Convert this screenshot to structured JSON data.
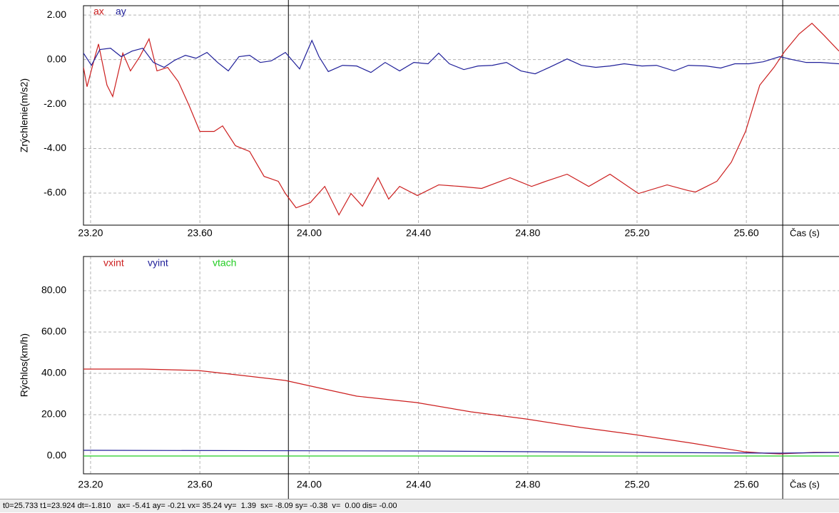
{
  "chart_data": [
    {
      "type": "line",
      "ylabel": "Zrýchlenie(m/s2)",
      "xlabel": "Čas (s)",
      "xlim": [
        23.174,
        25.939
      ],
      "ylim": [
        -7.44,
        2.42
      ],
      "xticks": [
        {
          "value": 23.2,
          "label": "23.20"
        },
        {
          "value": 23.6,
          "label": "23.60"
        },
        {
          "value": 24.0,
          "label": "24.00"
        },
        {
          "value": 24.4,
          "label": "24.40"
        },
        {
          "value": 24.8,
          "label": "24.80"
        },
        {
          "value": 25.2,
          "label": "25.20"
        },
        {
          "value": 25.6,
          "label": "25.60"
        }
      ],
      "yticks": [
        {
          "value": 2,
          "label": "2.00"
        },
        {
          "value": 0,
          "label": "0.00"
        },
        {
          "value": -2,
          "label": "-2.00"
        },
        {
          "value": -4,
          "label": "-4.00"
        },
        {
          "value": -6,
          "label": "-6.00"
        }
      ],
      "grid": true,
      "cursors": [
        23.924,
        25.733
      ],
      "series": [
        {
          "name": "ax",
          "color": "#cc1f1f",
          "x": [
            23.174,
            23.187,
            23.216,
            23.229,
            23.26,
            23.281,
            23.318,
            23.346,
            23.38,
            23.414,
            23.443,
            23.482,
            23.521,
            23.56,
            23.6,
            23.652,
            23.683,
            23.73,
            23.782,
            23.835,
            23.887,
            23.913,
            23.952,
            24.004,
            24.057,
            24.109,
            24.153,
            24.195,
            24.252,
            24.291,
            24.331,
            24.396,
            24.474,
            24.553,
            24.631,
            24.735,
            24.814,
            24.866,
            24.944,
            25.023,
            25.101,
            25.205,
            25.31,
            25.388,
            25.414,
            25.492,
            25.545,
            25.597,
            25.649,
            25.701,
            25.741,
            25.793,
            25.84,
            25.884,
            25.939
          ],
          "values": [
            -0.35,
            -1.22,
            0.13,
            0.7,
            -1.15,
            -1.66,
            0.29,
            -0.51,
            0.13,
            0.93,
            -0.51,
            -0.35,
            -0.99,
            -2.05,
            -3.23,
            -3.23,
            -2.98,
            -3.87,
            -4.13,
            -5.25,
            -5.47,
            -6.02,
            -6.66,
            -6.43,
            -5.7,
            -6.98,
            -6.02,
            -6.59,
            -5.31,
            -6.27,
            -5.7,
            -6.11,
            -5.63,
            -5.7,
            -5.79,
            -5.31,
            -5.7,
            -5.47,
            -5.15,
            -5.7,
            -5.15,
            -6.02,
            -5.63,
            -5.89,
            -5.95,
            -5.47,
            -4.61,
            -3.23,
            -1.15,
            -0.35,
            0.38,
            1.15,
            1.63,
            1.09,
            0.38
          ]
        },
        {
          "name": "ay",
          "color": "#1f1f99",
          "x": [
            23.174,
            23.203,
            23.234,
            23.273,
            23.312,
            23.352,
            23.391,
            23.43,
            23.469,
            23.508,
            23.547,
            23.586,
            23.626,
            23.665,
            23.704,
            23.743,
            23.782,
            23.821,
            23.861,
            23.913,
            23.965,
            24.01,
            24.036,
            24.07,
            24.122,
            24.174,
            24.226,
            24.278,
            24.331,
            24.383,
            24.435,
            24.474,
            24.513,
            24.566,
            24.618,
            24.67,
            24.722,
            24.775,
            24.827,
            24.879,
            24.944,
            24.996,
            25.049,
            25.101,
            25.153,
            25.218,
            25.271,
            25.336,
            25.388,
            25.453,
            25.506,
            25.558,
            25.61,
            25.662,
            25.722,
            25.767,
            25.819,
            25.871,
            25.939
          ],
          "values": [
            0.29,
            -0.26,
            0.45,
            0.51,
            0.13,
            0.38,
            0.51,
            -0.13,
            -0.35,
            -0.03,
            0.19,
            0.06,
            0.32,
            -0.13,
            -0.51,
            0.13,
            0.19,
            -0.13,
            -0.06,
            0.32,
            -0.42,
            0.86,
            0.13,
            -0.54,
            -0.26,
            -0.29,
            -0.58,
            -0.13,
            -0.51,
            -0.13,
            -0.19,
            0.29,
            -0.19,
            -0.45,
            -0.29,
            -0.26,
            -0.13,
            -0.51,
            -0.64,
            -0.35,
            0.03,
            -0.26,
            -0.35,
            -0.29,
            -0.19,
            -0.29,
            -0.26,
            -0.51,
            -0.26,
            -0.29,
            -0.38,
            -0.19,
            -0.19,
            -0.1,
            0.13,
            0.0,
            -0.13,
            -0.13,
            -0.19
          ]
        }
      ]
    },
    {
      "type": "line",
      "ylabel": "Rýchlos(km/h)",
      "xlabel": "Čas (s)",
      "xlim": [
        23.174,
        25.939
      ],
      "ylim": [
        -8.62,
        96.55
      ],
      "xticks": [
        {
          "value": 23.2,
          "label": "23.20"
        },
        {
          "value": 23.6,
          "label": "23.60"
        },
        {
          "value": 24.0,
          "label": "24.00"
        },
        {
          "value": 24.4,
          "label": "24.40"
        },
        {
          "value": 24.8,
          "label": "24.80"
        },
        {
          "value": 25.2,
          "label": "25.20"
        },
        {
          "value": 25.6,
          "label": "25.60"
        }
      ],
      "yticks": [
        {
          "value": 80,
          "label": "80.00"
        },
        {
          "value": 60,
          "label": "60.00"
        },
        {
          "value": 40,
          "label": "40.00"
        },
        {
          "value": 20,
          "label": "20.00"
        },
        {
          "value": 0,
          "label": "0.00"
        }
      ],
      "grid": true,
      "cursors": [
        23.924,
        25.733
      ],
      "series": [
        {
          "name": "vxint",
          "color": "#cc1f1f",
          "x": [
            23.174,
            23.391,
            23.594,
            23.756,
            23.913,
            24.043,
            24.174,
            24.393,
            24.592,
            24.793,
            24.996,
            25.192,
            25.401,
            25.592,
            25.662,
            25.722,
            25.845,
            25.939
          ],
          "values": [
            42.07,
            42.07,
            41.38,
            38.97,
            36.55,
            32.76,
            28.97,
            25.86,
            21.38,
            17.93,
            13.79,
            10.34,
            6.21,
            2.07,
            1.38,
            1.03,
            1.72,
            1.72
          ]
        },
        {
          "name": "vyint",
          "color": "#1f1f99",
          "x": [
            23.174,
            24.435,
            25.218,
            25.722,
            25.939
          ],
          "values": [
            2.76,
            2.41,
            1.72,
            1.38,
            1.72
          ]
        },
        {
          "name": "vtach",
          "color": "#22cc22",
          "x": [
            23.174,
            25.939
          ],
          "values": [
            0,
            0
          ]
        }
      ]
    }
  ],
  "status_bar": "t0=25.733 t1=23.924 dt=-1.810   ax= -5.41 ay= -0.21 vx= 35.24 vy=  1.39  sx= -8.09 sy= -0.38  v=  0.00 dis= -0.00"
}
